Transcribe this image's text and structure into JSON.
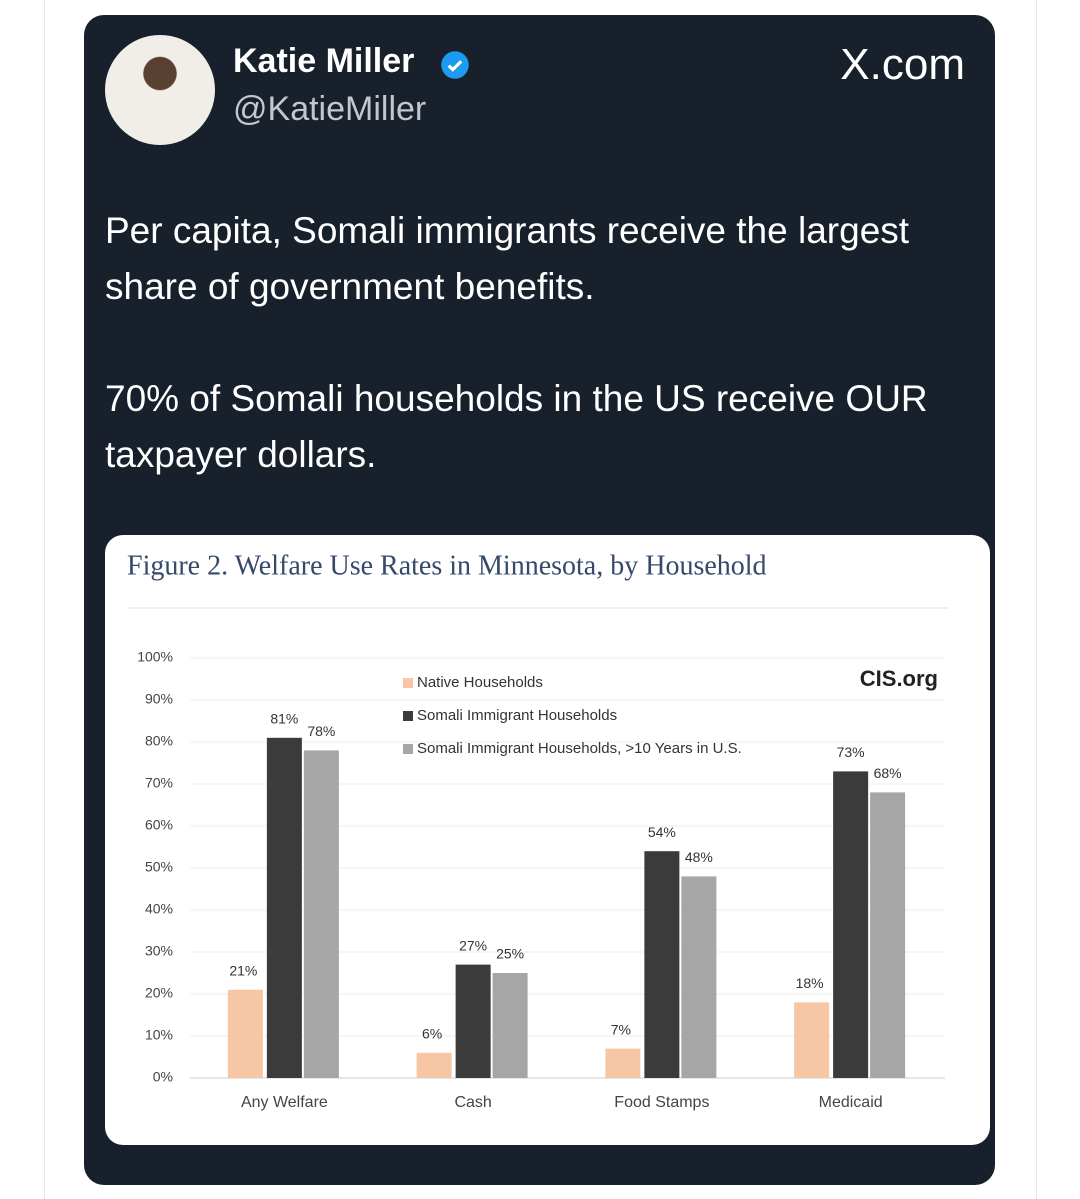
{
  "author": {
    "name": "Katie Miller",
    "handle": "@KatieMiller"
  },
  "site": "X.com",
  "tweet": {
    "paragraphs": [
      "Per capita, Somali immigrants receive the largest share of government benefits.",
      "70% of Somali households in the US receive OUR taxpayer dollars."
    ]
  },
  "chart_data": {
    "type": "bar",
    "title": "Figure 2. Welfare Use Rates in Minnesota, by Household",
    "source": "CIS.org",
    "categories": [
      "Any Welfare",
      "Cash",
      "Food Stamps",
      "Medicaid"
    ],
    "series": [
      {
        "name": "Native Households",
        "color": "#f7c6a5",
        "values": [
          21,
          6,
          7,
          18
        ],
        "value_labels": [
          "21%",
          "6%",
          "7%",
          "18%"
        ]
      },
      {
        "name": "Somali Immigrant Households",
        "color": "#3b3b3b",
        "values": [
          81,
          27,
          54,
          73
        ],
        "value_labels": [
          "81%",
          "27%",
          "54%",
          "73%"
        ]
      },
      {
        "name": "Somali Immigrant Households, >10 Years in U.S.",
        "color": "#a6a6a6",
        "values": [
          78,
          25,
          48,
          68
        ],
        "value_labels": [
          "78%",
          "25%",
          "48%",
          "68%"
        ]
      }
    ],
    "ylim": [
      0,
      100
    ],
    "yticks": [
      {
        "value": 0,
        "label": "0%"
      },
      {
        "value": 10,
        "label": "10%"
      },
      {
        "value": 20,
        "label": "20%"
      },
      {
        "value": 30,
        "label": "30%"
      },
      {
        "value": 40,
        "label": "40%"
      },
      {
        "value": 50,
        "label": "50%"
      },
      {
        "value": 60,
        "label": "60%"
      },
      {
        "value": 70,
        "label": "70%"
      },
      {
        "value": 80,
        "label": "80%"
      },
      {
        "value": 90,
        "label": "90%"
      },
      {
        "value": 100,
        "label": "100%"
      }
    ],
    "grid": true
  }
}
